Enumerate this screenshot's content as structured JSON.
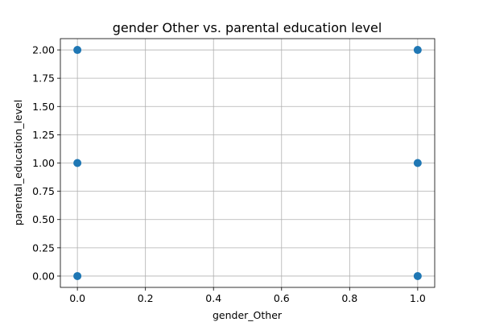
{
  "chart_data": {
    "type": "scatter",
    "title": "gender Other vs. parental education level",
    "xlabel": "gender_Other",
    "ylabel": "parental_education_level",
    "xlim": [
      -0.05,
      1.05
    ],
    "ylim": [
      -0.1,
      2.1
    ],
    "xticks": [
      0.0,
      0.2,
      0.4,
      0.6,
      0.8,
      1.0
    ],
    "xtick_labels": [
      "0.0",
      "0.2",
      "0.4",
      "0.6",
      "0.8",
      "1.0"
    ],
    "yticks": [
      0.0,
      0.25,
      0.5,
      0.75,
      1.0,
      1.25,
      1.5,
      1.75,
      2.0
    ],
    "ytick_labels": [
      "0.00",
      "0.25",
      "0.50",
      "0.75",
      "1.00",
      "1.25",
      "1.50",
      "1.75",
      "2.00"
    ],
    "grid": true,
    "points": [
      {
        "x": 0,
        "y": 0
      },
      {
        "x": 0,
        "y": 1
      },
      {
        "x": 0,
        "y": 2
      },
      {
        "x": 1,
        "y": 0
      },
      {
        "x": 1,
        "y": 1
      },
      {
        "x": 1,
        "y": 2
      }
    ],
    "marker_color": "#1f77b4"
  }
}
